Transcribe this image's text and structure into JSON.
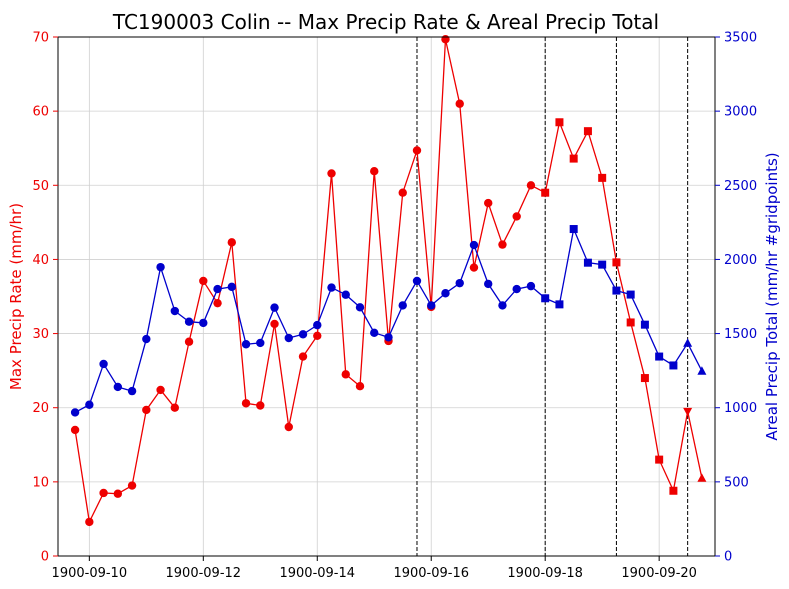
{
  "chart_data": {
    "type": "line",
    "title": "TC190003 Colin -- Max Precip Rate & Areal Precip Total",
    "ylabel_left": "Max Precip Rate (mm/hr)",
    "ylabel_right": "Areal Precip Total (mm/hr #gridpoints)",
    "x_ticks": [
      "1900-09-10",
      "1900-09-12",
      "1900-09-14",
      "1900-09-16",
      "1900-09-18",
      "1900-09-20"
    ],
    "x_tick_values": [
      0,
      2,
      4,
      6,
      8,
      10
    ],
    "xlim": [
      -0.55,
      10.98
    ],
    "ylim_left": [
      0,
      70
    ],
    "y_ticks_left": [
      0,
      10,
      20,
      30,
      40,
      50,
      60,
      70
    ],
    "ylim_right": [
      0,
      3500
    ],
    "y_ticks_right": [
      0,
      500,
      1000,
      1500,
      2000,
      2500,
      3000,
      3500
    ],
    "grid": true,
    "vlines_dashed": [
      5.75,
      8.0,
      9.25,
      10.5
    ],
    "colors": {
      "left": "#ee0000",
      "right": "#0000cc",
      "axis_left": "#ee0000",
      "axis_right": "#0000cc"
    },
    "x": [
      -0.25,
      0,
      0.25,
      0.5,
      0.75,
      1,
      1.25,
      1.5,
      1.75,
      2,
      2.25,
      2.5,
      2.75,
      3,
      3.25,
      3.5,
      3.75,
      4,
      4.25,
      4.5,
      4.75,
      5,
      5.25,
      5.5,
      5.75,
      6,
      6.25,
      6.5,
      6.75,
      7,
      7.25,
      7.5,
      7.75,
      8,
      8.25,
      8.5,
      8.75,
      9,
      9.25,
      9.5,
      9.75,
      10,
      10.25,
      10.5,
      10.75
    ],
    "markers": [
      "circle",
      "circle",
      "circle",
      "circle",
      "circle",
      "circle",
      "circle",
      "circle",
      "circle",
      "circle",
      "circle",
      "circle",
      "circle",
      "circle",
      "circle",
      "circle",
      "circle",
      "circle",
      "circle",
      "circle",
      "circle",
      "circle",
      "circle",
      "circle",
      "circle",
      "circle",
      "circle",
      "circle",
      "circle",
      "circle",
      "circle",
      "circle",
      "circle",
      "square",
      "square",
      "square",
      "square",
      "square",
      "square",
      "square",
      "square",
      "square",
      "square",
      "triangle",
      "triangle"
    ],
    "series": [
      {
        "axis": "left",
        "color": "#ee0000",
        "values": [
          17.0,
          4.6,
          8.5,
          8.4,
          9.5,
          19.7,
          22.4,
          20.0,
          28.9,
          37.1,
          34.1,
          42.3,
          20.6,
          20.3,
          31.3,
          17.4,
          26.9,
          29.7,
          51.6,
          24.5,
          22.9,
          51.9,
          29.0,
          49.0,
          54.7,
          33.6,
          69.7,
          61.0,
          38.9,
          47.6,
          42.0,
          45.8,
          50.0,
          49.0,
          58.5,
          53.6,
          57.3,
          51.0,
          39.6,
          31.5,
          24.0,
          13.0,
          8.8,
          19.5,
          10.5
        ]
      },
      {
        "axis": "right",
        "color": "#0000cc",
        "values": [
          968,
          1020,
          1295,
          1140,
          1112,
          1463,
          1948,
          1652,
          1580,
          1572,
          1800,
          1815,
          1428,
          1437,
          1675,
          1470,
          1495,
          1557,
          1810,
          1762,
          1677,
          1505,
          1475,
          1690,
          1855,
          1690,
          1772,
          1840,
          2097,
          1835,
          1690,
          1800,
          1820,
          1738,
          1697,
          2205,
          1978,
          1965,
          1790,
          1763,
          1560,
          1345,
          1285,
          1435,
          1247
        ]
      }
    ]
  }
}
